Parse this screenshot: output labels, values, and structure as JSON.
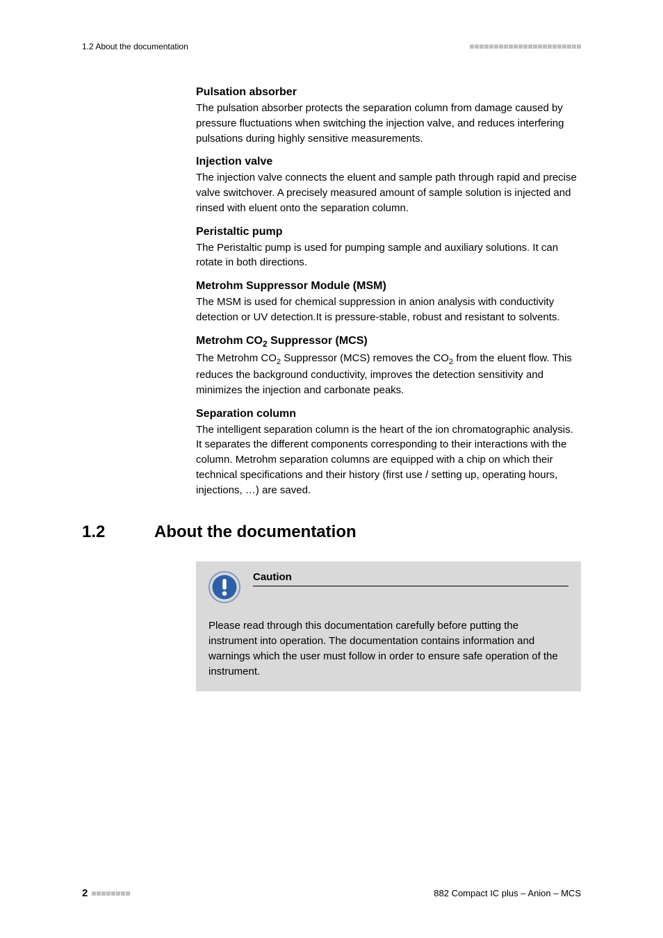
{
  "header": {
    "left": "1.2 About the documentation",
    "square_count": 23,
    "square_color": "#bfbfbf"
  },
  "sections": {
    "pulsation": {
      "heading": "Pulsation absorber",
      "body": "The pulsation absorber protects the separation column from damage caused by pressure fluctuations when switching the injection valve, and reduces interfering pulsations during highly sensitive measurements."
    },
    "injection": {
      "heading": "Injection valve",
      "body": "The injection valve connects the eluent and sample path through rapid and precise valve switchover. A precisely measured amount of sample solution is injected and rinsed with eluent onto the separation column."
    },
    "peristaltic": {
      "heading": "Peristaltic pump",
      "body": "The Peristaltic pump is used for pumping sample and auxiliary solutions. It can rotate in both directions."
    },
    "msm": {
      "heading": "Metrohm Suppressor Module (MSM)",
      "body": "The MSM is used for chemical suppression in anion analysis with conductivity detection or UV detection.It is pressure-stable, robust and resistant to solvents."
    },
    "mcs": {
      "heading_pre": "Metrohm CO",
      "heading_sub": "2",
      "heading_post": " Suppressor (MCS)",
      "body_pre": "The Metrohm CO",
      "body_sub1": "2",
      "body_mid": " Suppressor (MCS) removes the CO",
      "body_sub2": "2",
      "body_post": " from the eluent flow. This reduces the background conductivity, improves the detection sensitivity and minimizes the injection and carbonate peaks."
    },
    "separation": {
      "heading": "Separation column",
      "body": "The intelligent separation column is the heart of the ion chromatographic analysis. It separates the different components corresponding to their interactions with the column. Metrohm separation columns are equipped with a chip on which their technical specifications and their history (first use / setting up, operating hours, injections, …) are saved."
    }
  },
  "main_section": {
    "number": "1.2",
    "title": "About the documentation"
  },
  "caution": {
    "label": "Caution",
    "text": "Please read through this documentation carefully before putting the instrument into operation. The documentation contains information and warnings which the user must follow in order to ensure safe operation of the instrument.",
    "icon_outer": "#7a99c2",
    "icon_inner": "#2f5fa6",
    "icon_mark": "#ffffff"
  },
  "footer": {
    "page": "2",
    "square_count": 8,
    "right": "882 Compact IC plus – Anion – MCS"
  }
}
